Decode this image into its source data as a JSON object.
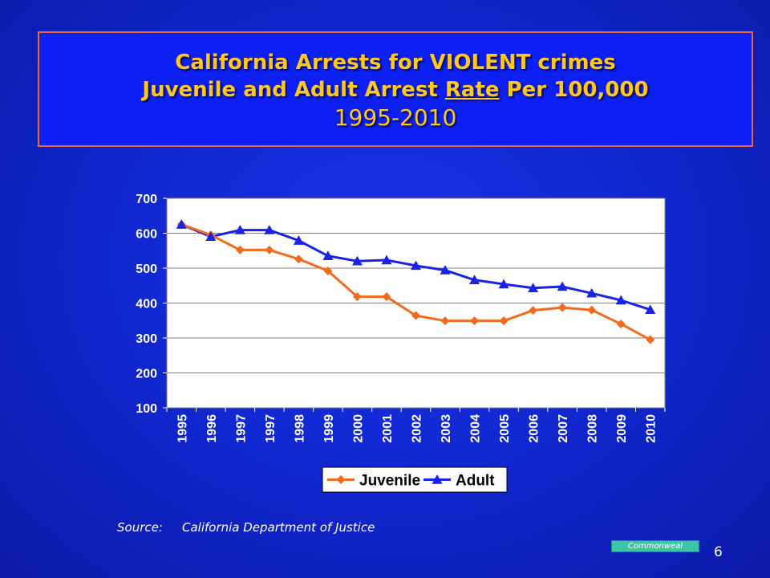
{
  "slide": {
    "title_line1": "California Arrests for VIOLENT crimes",
    "title_line2_pre": "Juvenile and Adult Arrest ",
    "title_line2_underlined": "Rate",
    "title_line2_post": " Per 100,000",
    "title_line3": "1995-2010",
    "source_label": "Source:",
    "source_text": "California Department of Justice",
    "badge_text": "Commonweal",
    "page_number": "6"
  },
  "chart_data": {
    "type": "line",
    "categories": [
      "1995",
      "1996",
      "1997",
      "1997",
      "1998",
      "1999",
      "2000",
      "2001",
      "2002",
      "2003",
      "2004",
      "2005",
      "2006",
      "2007",
      "2008",
      "2009",
      "2010"
    ],
    "series": [
      {
        "name": "Juvenile",
        "color": "#f26b1d",
        "marker": "diamond",
        "values": [
          625,
          595,
          552,
          552,
          526,
          492,
          418,
          418,
          364,
          349,
          349,
          349,
          379,
          387,
          380,
          340,
          295
        ]
      },
      {
        "name": "Adult",
        "color": "#1a22e6",
        "marker": "triangle",
        "values": [
          625,
          590,
          609,
          609,
          579,
          535,
          520,
          523,
          507,
          494,
          466,
          454,
          443,
          447,
          428,
          408,
          381
        ]
      }
    ],
    "ylim": [
      100,
      700
    ],
    "yticks": [
      100,
      200,
      300,
      400,
      500,
      600,
      700
    ],
    "grid": true,
    "legend": "bottom"
  }
}
